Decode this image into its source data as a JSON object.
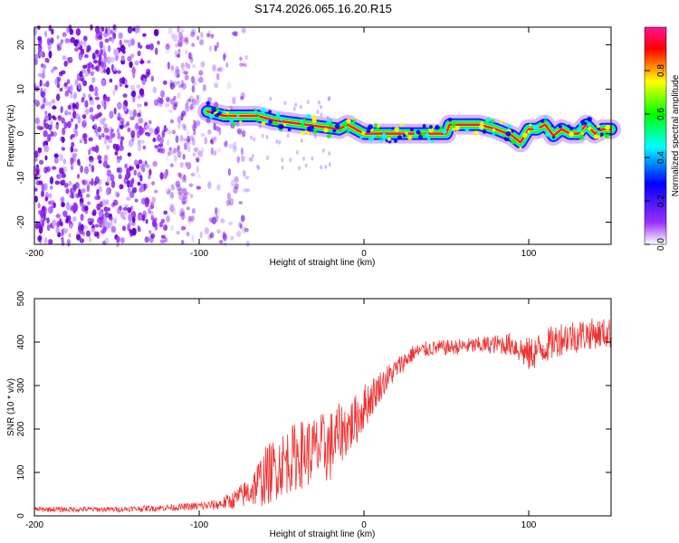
{
  "chart_data": [
    {
      "type": "heatmap",
      "title": "S174.2026.065.16.20.R15",
      "xlabel": "Height of straight line (km)",
      "ylabel": "Frequency (Hz)",
      "xlim": [
        -200,
        150
      ],
      "ylim": [
        -25,
        24
      ],
      "xticks": [
        -200,
        -100,
        0,
        100
      ],
      "xtick_labels": [
        "-200",
        "-100",
        "0",
        "100"
      ],
      "yticks": [
        -20,
        -10,
        0,
        10,
        20
      ],
      "ytick_labels": [
        "-20",
        "-10",
        "0",
        "10",
        "20"
      ],
      "colorbar": {
        "label": "Normalized spectral amplitude",
        "range": [
          0,
          1
        ],
        "ticks": [
          0.0,
          0.2,
          0.4,
          0.6,
          0.8
        ],
        "tick_labels": [
          "0.0",
          "0.2",
          "0.4",
          "0.6",
          "0.8"
        ],
        "colormap": [
          "#ffffff",
          "#9b30ff",
          "#0000ff",
          "#00ffff",
          "#00ff00",
          "#ffff00",
          "#ff0000",
          "#ff1493"
        ]
      },
      "ridge": {
        "x": [
          -95,
          -85,
          -75,
          -65,
          -55,
          -45,
          -35,
          -25,
          -15,
          -10,
          -5,
          0,
          10,
          20,
          30,
          40,
          50,
          52,
          60,
          70,
          80,
          90,
          95,
          100,
          105,
          110,
          115,
          120,
          125,
          130,
          135,
          140,
          145,
          150
        ],
        "freq": [
          5,
          4,
          4,
          4,
          3,
          2.5,
          2,
          1.5,
          1,
          2,
          1,
          0,
          0,
          0,
          0,
          0,
          0,
          2,
          2,
          2,
          1,
          -0.5,
          -2,
          1,
          1,
          2,
          -0.5,
          1,
          0,
          0,
          2,
          0,
          1,
          1
        ]
      }
    },
    {
      "type": "line",
      "title": "",
      "xlabel": "Height of straight line (km)",
      "ylabel": "SNR (10 * v/v)",
      "xlim": [
        -200,
        150
      ],
      "ylim": [
        0,
        500
      ],
      "xticks": [
        -200,
        -100,
        0,
        100
      ],
      "xtick_labels": [
        "-200",
        "-100",
        "0",
        "100"
      ],
      "yticks": [
        0,
        100,
        200,
        300,
        400,
        500
      ],
      "ytick_labels": [
        "0",
        "100",
        "200",
        "300",
        "400",
        "500"
      ],
      "series": [
        {
          "name": "SNR",
          "color": "#ee3333",
          "x": [
            -200,
            -150,
            -110,
            -90,
            -80,
            -70,
            -60,
            -50,
            -40,
            -30,
            -20,
            -15,
            -10,
            -5,
            0,
            10,
            20,
            30,
            40,
            60,
            80,
            90,
            100,
            110,
            120,
            130,
            140,
            150
          ],
          "y": [
            15,
            15,
            20,
            25,
            35,
            55,
            90,
            120,
            140,
            150,
            160,
            190,
            200,
            220,
            250,
            300,
            340,
            375,
            385,
            390,
            395,
            395,
            370,
            390,
            410,
            415,
            420,
            420
          ],
          "noise_amplitude": [
            6,
            6,
            8,
            12,
            20,
            35,
            70,
            75,
            80,
            80,
            85,
            70,
            65,
            60,
            55,
            35,
            25,
            20,
            18,
            18,
            22,
            28,
            40,
            40,
            40,
            40,
            35,
            35
          ]
        }
      ]
    }
  ]
}
